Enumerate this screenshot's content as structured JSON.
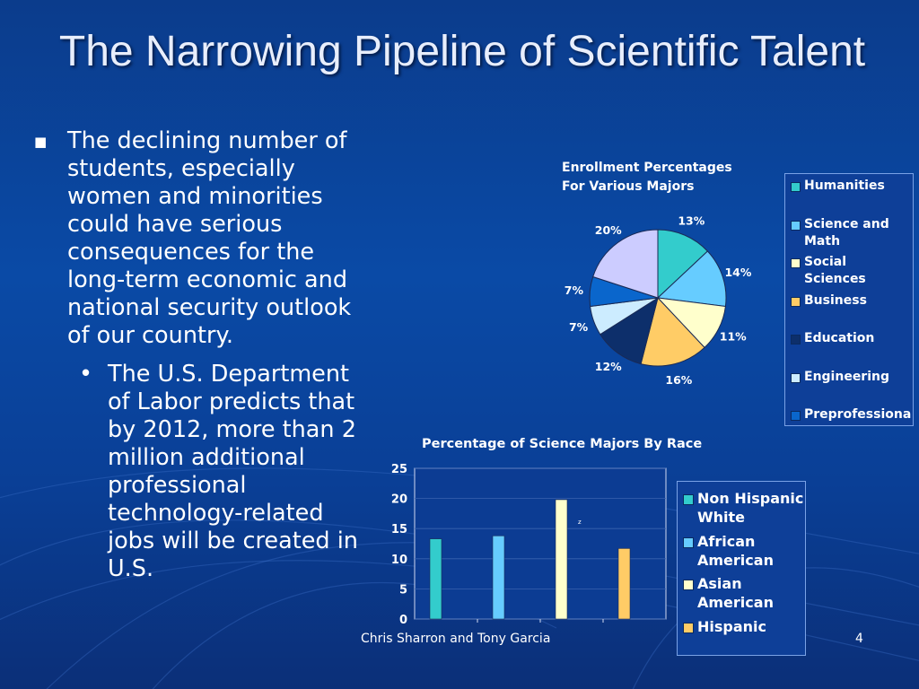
{
  "title": "The Narrowing Pipeline of Scientific Talent",
  "bullet1": "The declining number of students, especially women and minorities could have serious consequences for the long-term economic and national security outlook of our country.",
  "bullet2": "The U.S. Department of Labor predicts that by 2012, more than 2 million additional professional technology-related jobs will be created in U.S.",
  "footer": "Chris Sharron and Tony Garcia",
  "page_number": "4",
  "chart_data": [
    {
      "type": "pie",
      "title": "Enrollment Percentages For Various Majors",
      "title_lines": [
        "Enrollment Percentages",
        "For Various Majors"
      ],
      "slices": [
        {
          "label": "Humanities",
          "legend_lines": [
            "Humanities"
          ],
          "value": 13,
          "label_text": "13%",
          "color": "#33cccc"
        },
        {
          "label": "Science and Math",
          "legend_lines": [
            "Science and",
            "Math"
          ],
          "value": 14,
          "label_text": "14%",
          "color": "#66ccff"
        },
        {
          "label": "Social Sciences",
          "legend_lines": [
            "Social",
            "Sciences"
          ],
          "value": 11,
          "label_text": "11%",
          "color": "#ffffcc"
        },
        {
          "label": "Business",
          "legend_lines": [
            "Business"
          ],
          "value": 16,
          "label_text": "16%",
          "color": "#ffcc66"
        },
        {
          "label": "Education",
          "legend_lines": [
            "Education"
          ],
          "value": 12,
          "label_text": "12%",
          "color": "#0d2f6b"
        },
        {
          "label": "Engineering",
          "legend_lines": [
            "Engineering"
          ],
          "value": 7,
          "label_text": "7%",
          "color": "#ccecff"
        },
        {
          "label": "Preprofessional",
          "legend_lines": [
            "Preprofessiona"
          ],
          "value": 7,
          "label_text": "7%",
          "color": "#0a66cc"
        },
        {
          "label": "",
          "legend_lines": [],
          "value": 20,
          "label_text": "20%",
          "color": "#ccccff"
        }
      ]
    },
    {
      "type": "bar",
      "title": "Percentage of Science Majors By Race",
      "ylim": [
        0,
        25
      ],
      "yticks": [
        "0",
        "5",
        "10",
        "15",
        "20",
        "25"
      ],
      "series": [
        {
          "name": "Non Hispanic White",
          "legend_lines": [
            "Non Hispanic",
            "White"
          ],
          "value": 13.3,
          "color": "#33cccc"
        },
        {
          "name": "African American",
          "legend_lines": [
            "African",
            "American"
          ],
          "value": 13.8,
          "color": "#66ccff"
        },
        {
          "name": "Asian American",
          "legend_lines": [
            "Asian",
            "American"
          ],
          "value": 19.8,
          "color": "#ffffcc"
        },
        {
          "name": "Hispanic",
          "legend_lines": [
            "Hispanic"
          ],
          "value": 11.7,
          "color": "#ffcc66"
        }
      ],
      "annotation": "z"
    }
  ]
}
